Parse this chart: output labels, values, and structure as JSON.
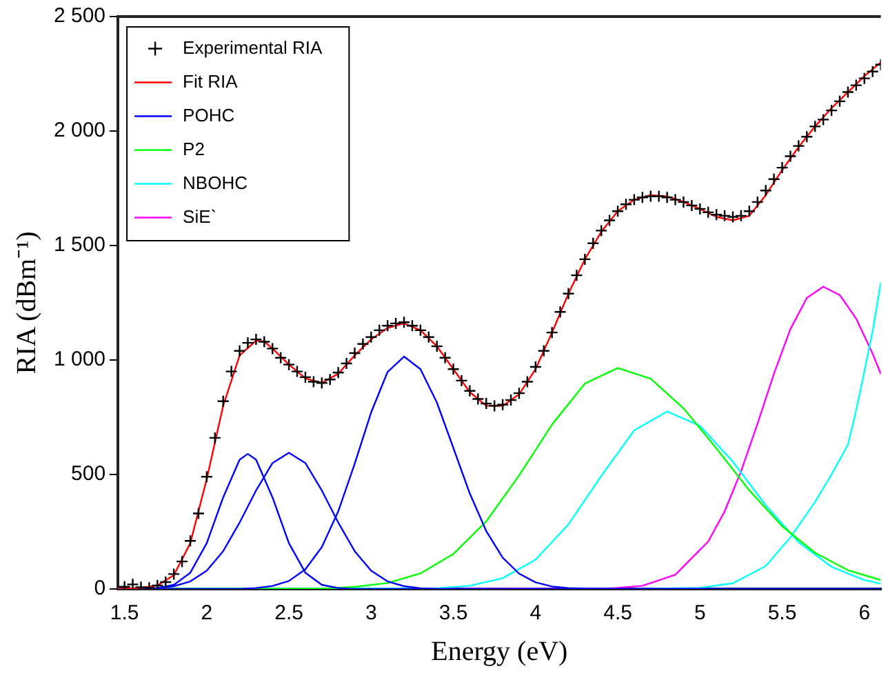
{
  "chart_data": {
    "type": "line",
    "xlabel": "Energy (eV)",
    "ylabel": "RIA (dBm⁻¹)",
    "xlim": [
      1.46,
      6.1
    ],
    "xticks": [
      1.5,
      2,
      2.5,
      3,
      3.5,
      4,
      4.5,
      5,
      5.5,
      6
    ],
    "ylim": [
      0,
      2500
    ],
    "yticks": [
      0,
      500,
      {
        "value": 1000,
        "label": "1 000"
      },
      {
        "value": 1500,
        "label": "1 500"
      },
      {
        "value": 2000,
        "label": "2 000"
      },
      {
        "value": 2500,
        "label": "2 500"
      }
    ],
    "legend": "top left",
    "grid": false,
    "series": [
      {
        "name": "Experimental RIA",
        "type": "scatter",
        "marker": "cross",
        "color": "#000000",
        "x": [
          1.5,
          1.55,
          1.6,
          1.65,
          1.7,
          1.75,
          1.8,
          1.85,
          1.9,
          1.95,
          2.0,
          2.05,
          2.1,
          2.15,
          2.2,
          2.25,
          2.3,
          2.35,
          2.4,
          2.45,
          2.5,
          2.55,
          2.6,
          2.65,
          2.7,
          2.75,
          2.8,
          2.85,
          2.9,
          2.95,
          3.0,
          3.05,
          3.1,
          3.15,
          3.2,
          3.25,
          3.3,
          3.35,
          3.4,
          3.45,
          3.5,
          3.55,
          3.6,
          3.65,
          3.7,
          3.75,
          3.8,
          3.85,
          3.9,
          3.95,
          4.0,
          4.05,
          4.1,
          4.15,
          4.2,
          4.25,
          4.3,
          4.35,
          4.4,
          4.45,
          4.5,
          4.55,
          4.6,
          4.65,
          4.7,
          4.75,
          4.8,
          4.85,
          4.9,
          4.95,
          5.0,
          5.05,
          5.1,
          5.15,
          5.2,
          5.25,
          5.3,
          5.35,
          5.4,
          5.45,
          5.5,
          5.55,
          5.6,
          5.65,
          5.7,
          5.75,
          5.8,
          5.85,
          5.9,
          5.95,
          6.0,
          6.05,
          6.1
        ],
        "values": [
          10,
          20,
          8,
          5,
          15,
          30,
          65,
          120,
          210,
          330,
          490,
          660,
          820,
          950,
          1040,
          1075,
          1090,
          1080,
          1050,
          1010,
          980,
          950,
          925,
          905,
          900,
          915,
          945,
          985,
          1030,
          1070,
          1100,
          1130,
          1150,
          1160,
          1165,
          1150,
          1130,
          1100,
          1060,
          1010,
          960,
          910,
          865,
          830,
          810,
          800,
          805,
          825,
          855,
          905,
          970,
          1040,
          1120,
          1210,
          1290,
          1370,
          1440,
          1510,
          1565,
          1610,
          1650,
          1680,
          1700,
          1710,
          1715,
          1715,
          1710,
          1700,
          1690,
          1675,
          1660,
          1645,
          1635,
          1630,
          1625,
          1630,
          1650,
          1690,
          1740,
          1790,
          1840,
          1890,
          1935,
          1975,
          2020,
          2050,
          2090,
          2130,
          2170,
          2200,
          2230,
          2260,
          2290
        ]
      },
      {
        "name": "Fit RIA",
        "type": "line",
        "color": "#ff0000",
        "x": [
          1.46,
          1.6,
          1.7,
          1.8,
          1.9,
          2.0,
          2.1,
          2.2,
          2.3,
          2.35,
          2.4,
          2.5,
          2.6,
          2.7,
          2.8,
          2.9,
          3.0,
          3.1,
          3.2,
          3.3,
          3.4,
          3.5,
          3.6,
          3.7,
          3.8,
          3.9,
          4.0,
          4.1,
          4.2,
          4.3,
          4.4,
          4.5,
          4.6,
          4.7,
          4.8,
          4.9,
          5.0,
          5.1,
          5.2,
          5.3,
          5.4,
          5.5,
          5.6,
          5.7,
          5.8,
          5.9,
          6.0,
          6.1
        ],
        "values": [
          0,
          5,
          15,
          60,
          200,
          480,
          800,
          1020,
          1085,
          1080,
          1050,
          980,
          920,
          900,
          940,
          1020,
          1090,
          1140,
          1160,
          1130,
          1060,
          960,
          860,
          800,
          800,
          850,
          960,
          1120,
          1290,
          1440,
          1560,
          1650,
          1700,
          1720,
          1715,
          1690,
          1660,
          1625,
          1610,
          1630,
          1720,
          1830,
          1930,
          2020,
          2100,
          2170,
          2240,
          2300
        ]
      },
      {
        "name": "POHC",
        "type": "line",
        "color": "#0000ff",
        "x": [
          1.46,
          1.7,
          1.8,
          1.9,
          2.0,
          2.1,
          2.2,
          2.25,
          2.3,
          2.4,
          2.5,
          2.6,
          2.7,
          2.8,
          2.9,
          6.1
        ],
        "values": [
          0,
          4,
          18,
          71,
          200,
          400,
          565,
          590,
          565,
          400,
          200,
          71,
          18,
          4,
          0,
          0
        ]
      },
      {
        "type": "line",
        "color": "#0000ff",
        "x": [
          1.46,
          1.7,
          1.8,
          1.9,
          2.0,
          2.1,
          2.2,
          2.3,
          2.4,
          2.5,
          2.6,
          2.7,
          2.8,
          2.9,
          3.0,
          3.1,
          3.2,
          3.3,
          3.4,
          6.1
        ],
        "values": [
          0,
          3,
          12,
          33,
          80,
          165,
          290,
          430,
          550,
          595,
          550,
          430,
          290,
          165,
          80,
          33,
          12,
          3,
          0,
          0
        ]
      },
      {
        "type": "line",
        "color": "#0000ff",
        "x": [
          1.46,
          2.2,
          2.3,
          2.4,
          2.5,
          2.6,
          2.7,
          2.8,
          2.9,
          3.0,
          3.1,
          3.2,
          3.3,
          3.4,
          3.5,
          3.6,
          3.7,
          3.8,
          3.9,
          4.0,
          4.1,
          4.2,
          4.4,
          6.1
        ],
        "values": [
          0,
          0,
          4,
          13,
          35,
          86,
          183,
          339,
          547,
          771,
          948,
          1015,
          960,
          814,
          616,
          417,
          253,
          137,
          67,
          29,
          11,
          4,
          0,
          0
        ]
      },
      {
        "name": "P2",
        "type": "line",
        "color": "#00ff00",
        "x": [
          1.46,
          2.7,
          2.9,
          3.1,
          3.3,
          3.5,
          3.7,
          3.9,
          4.1,
          4.3,
          4.5,
          4.7,
          4.9,
          5.1,
          5.3,
          5.5,
          5.7,
          5.9,
          6.1
        ],
        "values": [
          0,
          2,
          9,
          26,
          68,
          153,
          295,
          496,
          718,
          897,
          965,
          918,
          789,
          614,
          431,
          274,
          158,
          82,
          39
        ]
      },
      {
        "name": "NBOHC",
        "type": "line",
        "color": "#00ffff",
        "x": [
          1.46,
          3.4,
          3.6,
          3.8,
          4.0,
          4.2,
          4.4,
          4.6,
          4.8,
          5.0,
          5.2,
          5.4,
          5.6,
          5.8,
          6.0,
          6.1
        ],
        "values": [
          0,
          3,
          14,
          47,
          128,
          282,
          494,
          693,
          775,
          713,
          556,
          366,
          204,
          97,
          39,
          23
        ]
      },
      {
        "type": "line",
        "color": "#00ffff",
        "x": [
          4.6,
          5.0,
          5.2,
          5.4,
          5.55,
          5.7,
          5.8,
          5.9,
          5.95,
          6.0,
          6.05,
          6.1
        ],
        "values": [
          0,
          5,
          25,
          100,
          225,
          380,
          500,
          630,
          780,
          950,
          1125,
          1340
        ]
      },
      {
        "name": "SiE`",
        "type": "line",
        "color": "#ff00ff",
        "x": [
          1.46,
          4.45,
          4.65,
          4.85,
          5.05,
          5.15,
          5.25,
          5.35,
          5.45,
          5.55,
          5.65,
          5.75,
          5.85,
          5.95,
          6.05,
          6.1
        ],
        "values": [
          0,
          2,
          14,
          62,
          207,
          339,
          514,
          722,
          940,
          1135,
          1271,
          1320,
          1284,
          1181,
          1028,
          939
        ]
      }
    ]
  }
}
